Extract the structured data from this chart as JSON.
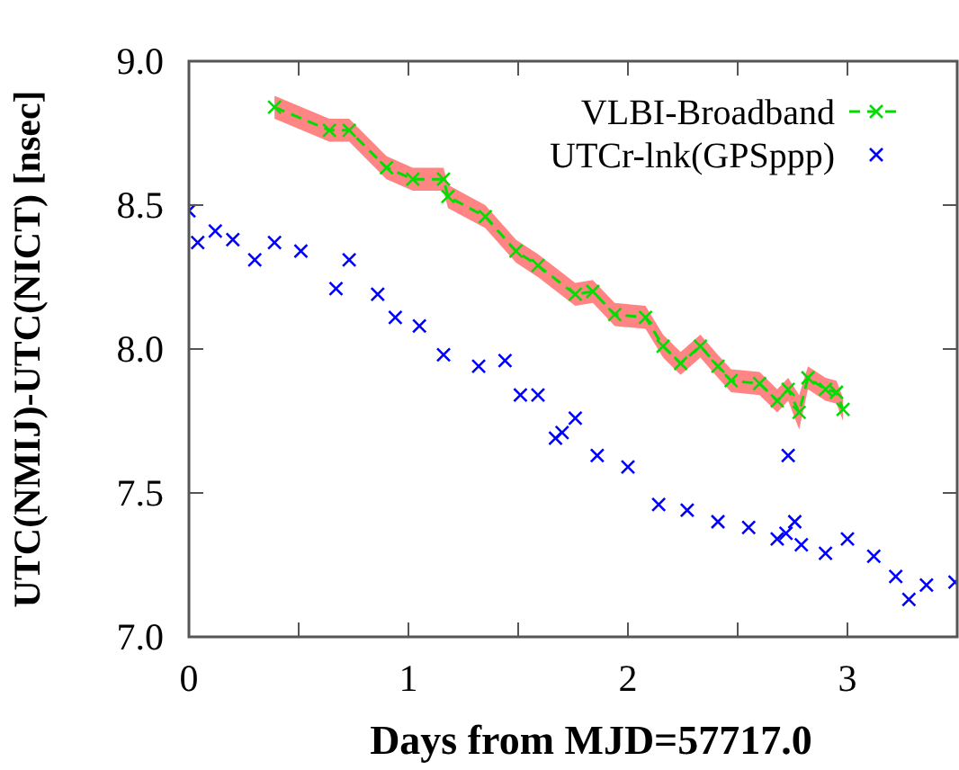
{
  "chart_data": {
    "type": "line",
    "xlabel": "Days from MJD=57717.0",
    "ylabel": "UTC(NMIJ)-UTC(NICT) [nsec]",
    "xlim": [
      0,
      3.5
    ],
    "xticks": [
      0,
      {
        "value": 0.5,
        "label": null
      },
      1,
      {
        "value": 1.5,
        "label": null
      },
      2,
      {
        "value": 2.5,
        "label": null
      },
      3
    ],
    "ylim": [
      7.0,
      9.0
    ],
    "yticks": [
      {
        "value": 7.0,
        "label": "7.0"
      },
      {
        "value": 7.5,
        "label": "7.5"
      },
      {
        "value": 8.0,
        "label": "8.0"
      },
      {
        "value": 8.5,
        "label": "8.5"
      },
      {
        "value": 9.0,
        "label": "9.0"
      }
    ],
    "grid": false,
    "legend": "top right",
    "marker": "cross",
    "series": [
      {
        "name": "VLBI-Broadband",
        "line_style": "dashed",
        "color": "#00dd00",
        "x": [
          0.39,
          0.64,
          0.73,
          0.9,
          1.02,
          1.16,
          1.18,
          1.35,
          1.49,
          1.59,
          1.76,
          1.84,
          1.94,
          2.08,
          2.16,
          2.24,
          2.33,
          2.41,
          2.47,
          2.6,
          2.68,
          2.73,
          2.78,
          2.82,
          2.9,
          2.95,
          2.98
        ],
        "values": [
          8.84,
          8.76,
          8.76,
          8.63,
          8.59,
          8.59,
          8.53,
          8.46,
          8.34,
          8.29,
          8.19,
          8.2,
          8.12,
          8.11,
          8.01,
          7.95,
          8.01,
          7.94,
          7.89,
          7.88,
          7.82,
          7.86,
          7.78,
          7.9,
          7.86,
          7.85,
          7.79
        ],
        "lower": [
          8.8,
          8.72,
          8.72,
          8.59,
          8.55,
          8.55,
          8.49,
          8.42,
          8.3,
          8.25,
          8.15,
          8.16,
          8.08,
          8.07,
          7.97,
          7.91,
          7.97,
          7.9,
          7.85,
          7.84,
          7.78,
          7.82,
          7.72,
          7.86,
          7.82,
          7.81,
          7.75
        ],
        "upper": [
          8.88,
          8.8,
          8.8,
          8.67,
          8.63,
          8.63,
          8.57,
          8.5,
          8.38,
          8.33,
          8.23,
          8.24,
          8.16,
          8.15,
          8.05,
          7.99,
          8.05,
          7.98,
          7.93,
          7.92,
          7.86,
          7.9,
          7.84,
          7.94,
          7.9,
          7.89,
          7.83
        ]
      },
      {
        "name": "UTCr-lnk(GPSppp)",
        "type": "scatter",
        "color": "#0000ff",
        "x": [
          0,
          0.04,
          0.12,
          0.2,
          0.3,
          0.39,
          0.51,
          0.67,
          0.73,
          0.86,
          0.94,
          1.05,
          1.16,
          1.32,
          1.44,
          1.51,
          1.59,
          1.67,
          1.7,
          1.76,
          1.86,
          2.0,
          2.14,
          2.27,
          2.41,
          2.55,
          2.68,
          2.72,
          2.73,
          2.76,
          2.79,
          2.9,
          3.0,
          3.12,
          3.22,
          3.28,
          3.36,
          3.49
        ],
        "values": [
          8.48,
          8.37,
          8.41,
          8.38,
          8.31,
          8.37,
          8.34,
          8.21,
          8.31,
          8.19,
          8.11,
          8.08,
          7.98,
          7.94,
          7.96,
          7.84,
          7.84,
          7.69,
          7.71,
          7.76,
          7.63,
          7.59,
          7.46,
          7.44,
          7.4,
          7.38,
          7.34,
          7.36,
          7.63,
          7.4,
          7.32,
          7.29,
          7.34,
          7.28,
          7.21,
          7.13,
          7.18,
          7.19
        ]
      }
    ]
  }
}
